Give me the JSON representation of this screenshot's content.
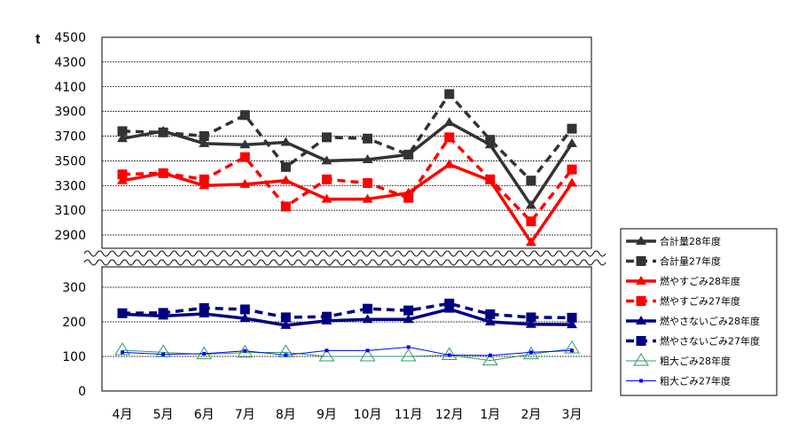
{
  "chart_data": {
    "type": "line",
    "ylabel": "t",
    "categories": [
      "4月",
      "5月",
      "6月",
      "7月",
      "8月",
      "9月",
      "10月",
      "11月",
      "12月",
      "1月",
      "2月",
      "3月"
    ],
    "axis_break": true,
    "upper_panel": {
      "ylim": [
        2900,
        4500
      ],
      "ticks": [
        2900,
        3100,
        3300,
        3500,
        3700,
        3900,
        4100,
        4300,
        4500
      ]
    },
    "lower_panel": {
      "ylim": [
        0,
        300
      ],
      "ticks": [
        0,
        100,
        200,
        300
      ]
    },
    "grid": "horizontal dashed",
    "legend_position": "right",
    "series": [
      {
        "name": "合計量28年度",
        "panel": "upper",
        "color": "#333333",
        "style": "solid",
        "marker": "triangle",
        "values": [
          3680,
          3740,
          3640,
          3630,
          3650,
          3500,
          3510,
          3550,
          3810,
          3630,
          3140,
          3640
        ]
      },
      {
        "name": "合計量27年度",
        "panel": "upper",
        "color": "#333333",
        "style": "dashed",
        "marker": "square",
        "values": [
          3740,
          3730,
          3700,
          3870,
          3450,
          3690,
          3680,
          3550,
          4040,
          3670,
          3340,
          3760
        ]
      },
      {
        "name": "燃やすごみ28年度",
        "panel": "upper",
        "color": "#ff0000",
        "style": "solid",
        "marker": "triangle",
        "values": [
          3340,
          3400,
          3300,
          3310,
          3340,
          3190,
          3190,
          3240,
          3470,
          3340,
          2840,
          3320
        ]
      },
      {
        "name": "燃やすごみ27年度",
        "panel": "upper",
        "color": "#ff0000",
        "style": "dashed",
        "marker": "square",
        "values": [
          3390,
          3400,
          3350,
          3530,
          3130,
          3350,
          3320,
          3200,
          3690,
          3350,
          3010,
          3430
        ]
      },
      {
        "name": "燃やさないごみ28年度",
        "panel": "lower",
        "color": "#000080",
        "style": "solid",
        "marker": "triangle",
        "values": [
          222,
          217,
          223,
          210,
          190,
          203,
          207,
          207,
          237,
          200,
          193,
          192
        ]
      },
      {
        "name": "燃やさないごみ27年度",
        "panel": "lower",
        "color": "#000080",
        "style": "dashed",
        "marker": "square",
        "values": [
          225,
          226,
          240,
          236,
          213,
          215,
          238,
          233,
          253,
          222,
          213,
          212
        ]
      },
      {
        "name": "粗大ごみ28年度",
        "panel": "lower",
        "color": "#339966",
        "style": "thin",
        "marker": "open-triangle",
        "values": [
          118,
          112,
          106,
          111,
          112,
          100,
          100,
          100,
          104,
          88,
          106,
          123
        ]
      },
      {
        "name": "粗大ごみ27年度",
        "panel": "lower",
        "color": "#0000ff",
        "style": "thin",
        "marker": "small-square",
        "values": [
          112,
          106,
          108,
          116,
          104,
          117,
          117,
          127,
          104,
          103,
          112,
          117
        ]
      }
    ]
  }
}
